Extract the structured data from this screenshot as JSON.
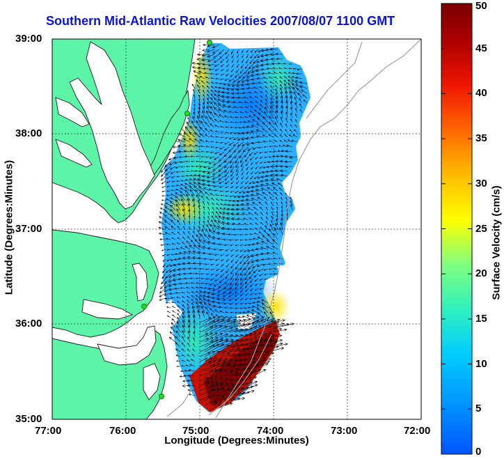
{
  "title": "Southern Mid-Atlantic Raw Velocities 2007/08/07 1100 GMT",
  "axes": {
    "xlabel": "Longitude (Degrees:Minutes)",
    "ylabel": "Latitude (Degrees:Minutes)",
    "x_ticks": [
      "77:00",
      "76:00",
      "75:00",
      "74:00",
      "73:00",
      "72:00"
    ],
    "y_ticks": [
      "39:00",
      "38:00",
      "37:00",
      "36:00",
      "35:00"
    ],
    "xlim": [
      -77,
      -72
    ],
    "ylim": [
      35,
      39
    ],
    "grid": "dotted"
  },
  "colorbar": {
    "label": "Surface Velocity (cm/s)",
    "ticks": [
      "50",
      "45",
      "40",
      "35",
      "30",
      "25",
      "20",
      "15",
      "10",
      "5",
      "0"
    ],
    "min": 0,
    "max": 50,
    "colormap": "jet"
  },
  "colors": {
    "land": "#5cf5a8",
    "title": "#0a14d8",
    "station_marker": "#22dd22",
    "depth_contour": "#a0a0a0"
  }
}
